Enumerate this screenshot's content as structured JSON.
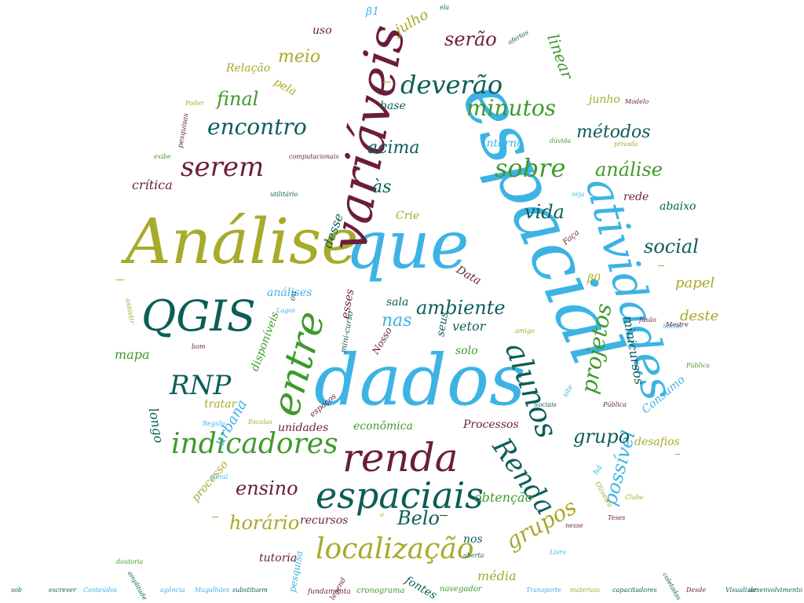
{
  "colors": {
    "olive": "#a8aa2a",
    "sky": "#3db3e4",
    "teal": "#0c5e58",
    "wine": "#6b1d3a",
    "green": "#3f9a2c"
  },
  "words": [
    {
      "text": "Análise",
      "color": "olive"
    },
    {
      "text": "que",
      "color": "sky"
    },
    {
      "text": "espacial",
      "color": "sky"
    },
    {
      "text": "dados",
      "color": "sky"
    },
    {
      "text": "variáveis",
      "color": "wine"
    },
    {
      "text": "atividades",
      "color": "sky"
    },
    {
      "text": "QGIS",
      "color": "teal"
    },
    {
      "text": "entre",
      "color": "green"
    },
    {
      "text": "renda",
      "color": "wine"
    },
    {
      "text": "espaciais",
      "color": "teal"
    },
    {
      "text": "indicadores",
      "color": "green"
    },
    {
      "text": "localização",
      "color": "olive"
    },
    {
      "text": "Renda",
      "color": "teal"
    },
    {
      "text": "alunos",
      "color": "teal"
    },
    {
      "text": "deverão",
      "color": "teal"
    },
    {
      "text": "sobre",
      "color": "green"
    },
    {
      "text": "serem",
      "color": "wine"
    },
    {
      "text": "RNP",
      "color": "teal"
    },
    {
      "text": "ambiente",
      "color": "teal"
    },
    {
      "text": "encontro",
      "color": "teal"
    },
    {
      "text": "minutos",
      "color": "green"
    },
    {
      "text": "projetos",
      "color": "green"
    },
    {
      "text": "possível",
      "color": "sky"
    },
    {
      "text": "grupos",
      "color": "olive"
    },
    {
      "text": "grupo",
      "color": "teal"
    },
    {
      "text": "vida",
      "color": "teal"
    },
    {
      "text": "análise",
      "color": "green"
    },
    {
      "text": "social",
      "color": "teal"
    },
    {
      "text": "métodos",
      "color": "teal"
    },
    {
      "text": "serão",
      "color": "wine"
    },
    {
      "text": "meio",
      "color": "olive"
    },
    {
      "text": "final",
      "color": "green"
    },
    {
      "text": "ensino",
      "color": "wine"
    },
    {
      "text": "horário",
      "color": "olive"
    },
    {
      "text": "Belo",
      "color": "teal"
    },
    {
      "text": "acima",
      "color": "teal"
    },
    {
      "text": "às",
      "color": "teal"
    },
    {
      "text": "nas",
      "color": "sky"
    },
    {
      "text": "linear",
      "color": "green"
    },
    {
      "text": "julho",
      "color": "olive"
    },
    {
      "text": "papel",
      "color": "olive"
    },
    {
      "text": "deste",
      "color": "olive"
    },
    {
      "text": "mapa",
      "color": "green"
    },
    {
      "text": "crítica",
      "color": "wine"
    },
    {
      "text": "vetor",
      "color": "teal"
    },
    {
      "text": "obtenção",
      "color": "green"
    },
    {
      "text": "média",
      "color": "olive"
    },
    {
      "text": "tutoria",
      "color": "wine"
    },
    {
      "text": "tratar",
      "color": "olive"
    },
    {
      "text": "processo",
      "color": "olive"
    },
    {
      "text": "urbana",
      "color": "sky"
    },
    {
      "text": "longo",
      "color": "teal"
    },
    {
      "text": "minicursos",
      "color": "teal"
    },
    {
      "text": "Consumo",
      "color": "sky"
    },
    {
      "text": "desafios",
      "color": "olive"
    },
    {
      "text": "rede",
      "color": "wine"
    },
    {
      "text": "abaixo",
      "color": "teal"
    },
    {
      "text": "Processos",
      "color": "wine"
    },
    {
      "text": "econômica",
      "color": "green"
    },
    {
      "text": "solo",
      "color": "green"
    },
    {
      "text": "sala",
      "color": "teal"
    },
    {
      "text": "análises",
      "color": "sky"
    },
    {
      "text": "desse",
      "color": "teal"
    },
    {
      "text": "Interno",
      "color": "sky"
    },
    {
      "text": "base",
      "color": "teal"
    },
    {
      "text": "Relação",
      "color": "olive"
    },
    {
      "text": "pela",
      "color": "olive"
    },
    {
      "text": "uso",
      "color": "wine"
    },
    {
      "text": "junho",
      "color": "olive"
    },
    {
      "text": "unidades",
      "color": "wine"
    },
    {
      "text": "recursos",
      "color": "wine"
    },
    {
      "text": "nos",
      "color": "teal"
    },
    {
      "text": "β0",
      "color": "olive"
    },
    {
      "text": "Data",
      "color": "wine"
    },
    {
      "text": "Crie",
      "color": "olive"
    },
    {
      "text": "β1",
      "color": "sky"
    },
    {
      "text": "disponíveis",
      "color": "green"
    },
    {
      "text": "Nosso",
      "color": "wine"
    },
    {
      "text": "mini-curso",
      "color": "teal"
    },
    {
      "text": "ou",
      "color": "teal"
    },
    {
      "text": "esses",
      "color": "wine"
    },
    {
      "text": "seus",
      "color": "teal"
    },
    {
      "text": "fontes",
      "color": "teal"
    },
    {
      "text": "navegador",
      "color": "green"
    },
    {
      "text": "cronograma",
      "color": "green"
    },
    {
      "text": "fundamenta",
      "color": "wine"
    },
    {
      "text": "legend",
      "color": "wine"
    },
    {
      "text": "pesquisa",
      "color": "sky"
    },
    {
      "text": "pesquisas",
      "color": "wine"
    },
    {
      "text": "assistir",
      "color": "olive"
    },
    {
      "text": "espaços",
      "color": "wine"
    },
    {
      "text": "Faça",
      "color": "wine"
    },
    {
      "text": "site",
      "color": "sky"
    },
    {
      "text": "há",
      "color": "sky"
    },
    {
      "text": "Oliveira",
      "color": "olive"
    },
    {
      "text": "ofertas",
      "color": "teal"
    },
    {
      "text": "privada",
      "color": "olive"
    },
    {
      "text": "Modelo",
      "color": "wine"
    },
    {
      "text": "Poder",
      "color": "olive"
    },
    {
      "text": "aberta",
      "color": "teal"
    },
    {
      "text": "Livro",
      "color": "sky"
    },
    {
      "text": "Geral",
      "color": "sky"
    },
    {
      "text": "Regulo",
      "color": "sky"
    },
    {
      "text": "Clube",
      "color": "olive"
    },
    {
      "text": "Teses",
      "color": "wine"
    },
    {
      "text": "fusão",
      "color": "wine"
    },
    {
      "text": "Social",
      "color": "sky"
    },
    {
      "text": "Pública",
      "color": "wine"
    },
    {
      "text": "doutoria",
      "color": "green"
    },
    {
      "text": "Escolas",
      "color": "olive"
    },
    {
      "text": "sob",
      "color": "teal"
    },
    {
      "text": "escrever",
      "color": "teal"
    },
    {
      "text": "Conteúdos",
      "color": "sky"
    },
    {
      "text": "amplitude",
      "color": "teal"
    },
    {
      "text": "agência",
      "color": "sky"
    },
    {
      "text": "Magalhães",
      "color": "sky"
    },
    {
      "text": "substituem",
      "color": "teal"
    },
    {
      "text": "Transporte",
      "color": "sky"
    },
    {
      "text": "materiais",
      "color": "olive"
    },
    {
      "text": "capacitadores",
      "color": "teal"
    },
    {
      "text": "coletadas",
      "color": "teal"
    },
    {
      "text": "Desde",
      "color": "wine"
    },
    {
      "text": "Visualizar",
      "color": "teal"
    },
    {
      "text": "desenvolvimento",
      "color": "teal"
    },
    {
      "text": "computacionais",
      "color": "wine"
    },
    {
      "text": "utilitário",
      "color": "teal"
    },
    {
      "text": "exibe",
      "color": "green"
    },
    {
      "text": "veja",
      "color": "sky"
    },
    {
      "text": "dúvida",
      "color": "green"
    },
    {
      "text": "Mestre",
      "color": "wine"
    },
    {
      "text": "Pública",
      "color": "green"
    },
    {
      "text": "amigo",
      "color": "olive"
    },
    {
      "text": "Sociais",
      "color": "teal"
    },
    {
      "text": "nesse",
      "color": "wine"
    },
    {
      "text": "bom",
      "color": "wine"
    },
    {
      "text": "Lagos",
      "color": "sky"
    },
    {
      "text": "ela",
      "color": "teal"
    },
    {
      "text": "o",
      "color": "olive"
    }
  ]
}
